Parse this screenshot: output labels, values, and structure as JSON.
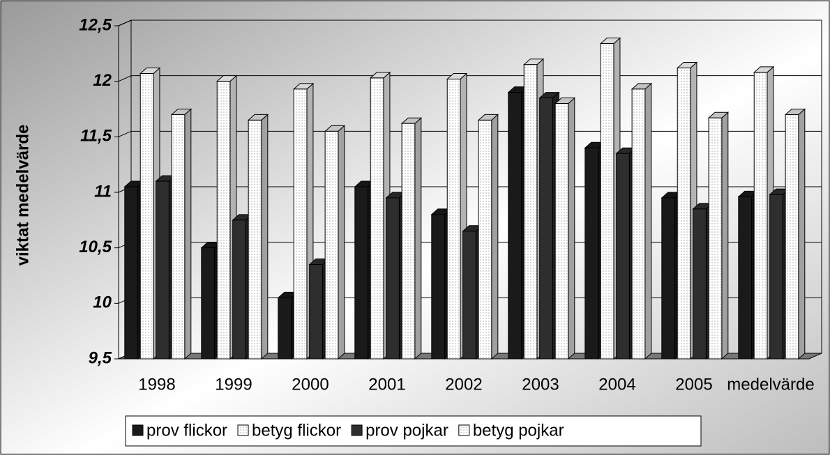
{
  "chart_data": {
    "type": "bar3d",
    "y_label": "viktat medelvärde",
    "categories": [
      "1998",
      "1999",
      "2000",
      "2001",
      "2002",
      "2003",
      "2004",
      "2005",
      "medelvärde"
    ],
    "series": [
      {
        "name": "prov flickor",
        "color": "#1a1a1a",
        "values": [
          11.05,
          10.5,
          10.05,
          11.05,
          10.8,
          11.9,
          11.4,
          10.95,
          10.96
        ]
      },
      {
        "name": "betyg flickor",
        "color": "#ffffff",
        "values": [
          12.07,
          12.0,
          11.93,
          12.03,
          12.02,
          12.15,
          12.34,
          12.12,
          12.08
        ]
      },
      {
        "name": "prov pojkar",
        "color": "#2e2e2e",
        "values": [
          11.1,
          10.75,
          10.35,
          10.95,
          10.65,
          11.85,
          11.35,
          10.85,
          10.98
        ]
      },
      {
        "name": "betyg pojkar",
        "color": "#e6e6e6",
        "values": [
          11.7,
          11.65,
          11.55,
          11.62,
          11.65,
          11.8,
          11.93,
          11.67,
          11.7
        ]
      }
    ],
    "ylim": [
      9.5,
      12.5
    ],
    "yticks": [
      {
        "value": 9.5,
        "label": "9,5"
      },
      10,
      {
        "value": 10.5,
        "label": "10,5"
      },
      11,
      {
        "value": 11.5,
        "label": "11,5"
      },
      12,
      {
        "value": 12.5,
        "label": "12,5"
      }
    ],
    "grid": true,
    "legend": "bottom"
  }
}
